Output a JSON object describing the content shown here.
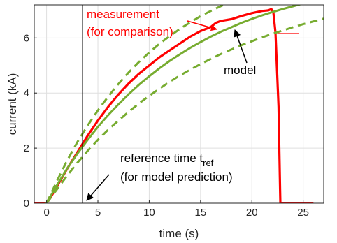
{
  "chart_data": {
    "type": "line",
    "xlabel": "time (s)",
    "ylabel": "current (kA)",
    "xlim": [
      -1.2,
      27
    ],
    "ylim": [
      0,
      7.2
    ],
    "xticks": [
      "0",
      "5",
      "10",
      "15",
      "20",
      "25"
    ],
    "yticks": [
      "0",
      "2",
      "4",
      "6"
    ],
    "grid": true,
    "reference_time": 3.5,
    "series": [
      {
        "color": "#ff0000",
        "style": "solid-thick",
        "x": [
          -1.2,
          0,
          0.3,
          1,
          2,
          3,
          4,
          5,
          6,
          7,
          8,
          9,
          10,
          11,
          12,
          13,
          14,
          15,
          16,
          16.5,
          17,
          18,
          19,
          20,
          21,
          21.6,
          21.9,
          22.1,
          22.3,
          22.6,
          22.75,
          22.78,
          23,
          26
        ],
        "y": [
          0,
          0,
          0.15,
          0.6,
          1.25,
          1.85,
          2.45,
          3.0,
          3.5,
          3.95,
          4.35,
          4.7,
          5.0,
          5.3,
          5.55,
          5.8,
          6.05,
          6.25,
          6.4,
          6.55,
          6.62,
          6.68,
          6.8,
          6.9,
          6.98,
          7.0,
          7.05,
          6.9,
          6.2,
          3.5,
          0.5,
          0,
          0,
          0
        ]
      },
      {
        "color": "#77ac30",
        "style": "solid",
        "x": [
          0,
          1,
          2,
          3,
          4,
          5,
          6,
          7,
          8,
          9,
          10,
          11,
          12,
          13,
          14,
          15,
          16,
          17,
          18,
          19,
          20,
          21,
          22,
          23,
          24,
          25,
          26
        ],
        "y": [
          0,
          0.65,
          1.26,
          1.8,
          2.3,
          2.77,
          3.2,
          3.59,
          3.96,
          4.3,
          4.61,
          4.9,
          5.17,
          5.41,
          5.64,
          5.85,
          6.05,
          6.23,
          6.39,
          6.55,
          6.69,
          6.82,
          6.94,
          7.05,
          7.15,
          7.25,
          7.34
        ]
      },
      {
        "color": "#77ac30",
        "style": "dashed",
        "x": [
          0,
          1,
          2,
          3,
          4,
          5,
          6,
          7,
          8,
          9,
          10,
          11,
          12,
          13,
          14,
          15,
          16,
          17,
          18
        ],
        "y": [
          0,
          0.8,
          1.55,
          2.22,
          2.82,
          3.37,
          3.87,
          4.33,
          4.75,
          5.13,
          5.47,
          5.79,
          6.07,
          6.33,
          6.57,
          6.79,
          6.98,
          7.16,
          7.32
        ]
      },
      {
        "color": "#77ac30",
        "style": "dashed",
        "x": [
          0,
          1,
          2,
          3,
          4,
          5,
          6,
          7,
          8,
          9,
          10,
          11,
          12,
          13,
          14,
          15,
          16,
          17,
          18,
          19,
          20,
          21,
          22,
          23,
          24,
          25,
          26,
          27
        ],
        "y": [
          0,
          0.5,
          1.0,
          1.47,
          1.9,
          2.3,
          2.67,
          3.0,
          3.32,
          3.62,
          3.9,
          4.16,
          4.41,
          4.64,
          4.85,
          5.05,
          5.24,
          5.42,
          5.58,
          5.74,
          5.88,
          6.02,
          6.15,
          6.27,
          6.39,
          6.5,
          6.6,
          6.7
        ]
      }
    ],
    "annotations": {
      "measurement_line1": "measurement",
      "measurement_line2": "(for comparison)",
      "model": "model",
      "ref_line1_base": "reference time t",
      "ref_line1_sub": "ref",
      "ref_line2": "(for model prediction)"
    },
    "colors": {
      "measurement": "#ff0000",
      "model": "#77ac30",
      "axis": "#262626",
      "grid": "#dfdfdf"
    }
  }
}
